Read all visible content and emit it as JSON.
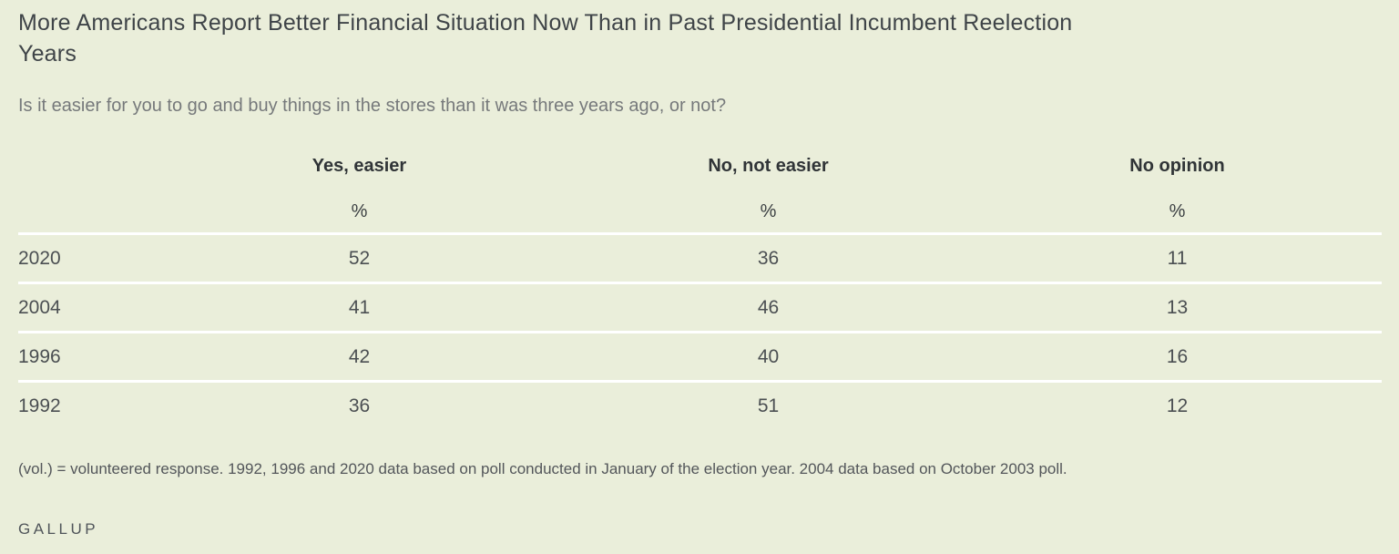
{
  "title": "More Americans Report Better Financial Situation Now Than in Past Presidential Incumbent Reelection Years",
  "subtitle": "Is it easier for you to go and buy things in the stores than it was three years ago, or not?",
  "table": {
    "columns": [
      "Yes, easier",
      "No, not easier",
      "No opinion"
    ],
    "unit": "%",
    "rows": [
      {
        "year": "2020",
        "values": [
          52,
          36,
          11
        ]
      },
      {
        "year": "2004",
        "values": [
          41,
          46,
          13
        ]
      },
      {
        "year": "1996",
        "values": [
          42,
          40,
          16
        ]
      },
      {
        "year": "1992",
        "values": [
          36,
          51,
          12
        ]
      }
    ]
  },
  "footnote": "(vol.) = volunteered response. 1992, 1996 and 2020 data based on poll conducted in January of the election year. 2004 data based on October 2003 poll.",
  "source": "GALLUP",
  "colors": {
    "background": "#eaeeda",
    "row_divider": "#ffffff",
    "title_text": "#3f4448",
    "subtitle_text": "#76797b",
    "header_text": "#303437",
    "body_text": "#4b4f52"
  },
  "chart_data": {
    "type": "table",
    "title": "More Americans Report Better Financial Situation Now Than in Past Presidential Incumbent Reelection Years",
    "subtitle": "Is it easier for you to go and buy things in the stores than it was three years ago, or not?",
    "categories": [
      "2020",
      "2004",
      "1996",
      "1992"
    ],
    "series": [
      {
        "name": "Yes, easier",
        "values": [
          52,
          41,
          42,
          36
        ]
      },
      {
        "name": "No, not easier",
        "values": [
          36,
          46,
          40,
          51
        ]
      },
      {
        "name": "No opinion",
        "values": [
          11,
          13,
          16,
          12
        ]
      }
    ],
    "unit": "%",
    "footnote": "(vol.) = volunteered response. 1992, 1996 and 2020 data based on poll conducted in January of the election year. 2004 data based on October 2003 poll.",
    "source": "GALLUP",
    "layout": {
      "grid": "horizontal-white-dividers",
      "legend": "column-headers"
    }
  }
}
